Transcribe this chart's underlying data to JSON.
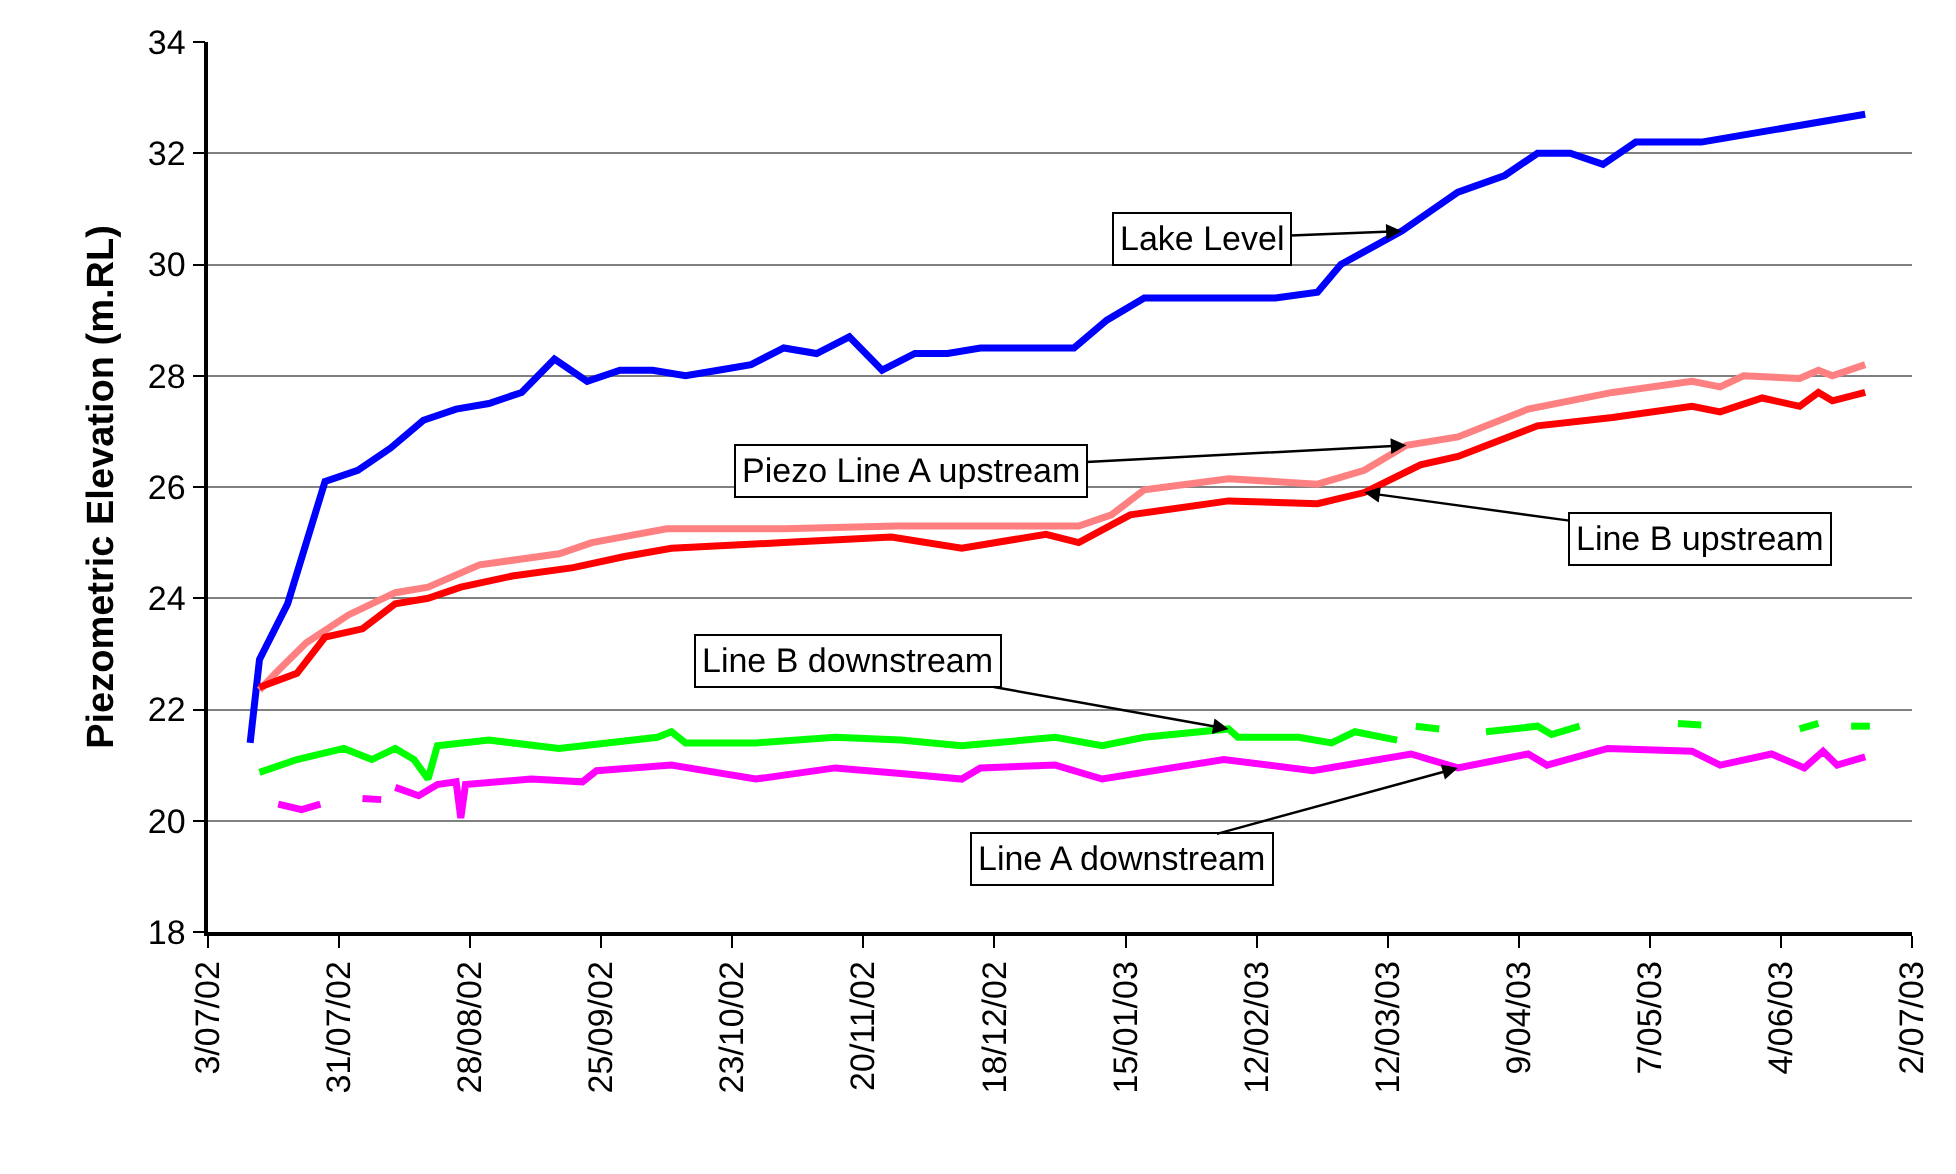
{
  "chart_data": {
    "type": "line",
    "ylabel": "Piezometric Elevation (m.RL)",
    "xlim": [
      "2002-07-03",
      "2003-07-02"
    ],
    "xticks": [
      {
        "value": "2002-07-03",
        "label": "3/07/02"
      },
      {
        "value": "2002-07-31",
        "label": "31/07/02"
      },
      {
        "value": "2002-08-28",
        "label": "28/08/02"
      },
      {
        "value": "2002-09-25",
        "label": "25/09/02"
      },
      {
        "value": "2002-10-23",
        "label": "23/10/02"
      },
      {
        "value": "2002-11-20",
        "label": "20/11/02"
      },
      {
        "value": "2002-12-18",
        "label": "18/12/02"
      },
      {
        "value": "2003-01-15",
        "label": "15/01/03"
      },
      {
        "value": "2003-02-12",
        "label": "12/02/03"
      },
      {
        "value": "2003-03-12",
        "label": "12/03/03"
      },
      {
        "value": "2003-04-09",
        "label": "9/04/03"
      },
      {
        "value": "2003-05-07",
        "label": "7/05/03"
      },
      {
        "value": "2003-06-04",
        "label": "4/06/03"
      },
      {
        "value": "2003-07-02",
        "label": "2/07/03"
      }
    ],
    "ylim": [
      18,
      34
    ],
    "yticks": [
      18,
      20,
      22,
      24,
      26,
      28,
      30,
      32,
      34
    ],
    "grid": "y",
    "legend": false,
    "marker": "none",
    "line_style": "solid",
    "series": [
      {
        "name": "Lake Level",
        "color": "#0000ff",
        "x": [
          "2002-07-12",
          "2002-07-14",
          "2002-07-20",
          "2002-07-28",
          "2002-08-04",
          "2002-08-11",
          "2002-08-18",
          "2002-08-25",
          "2002-09-01",
          "2002-09-08",
          "2002-09-15",
          "2002-09-22",
          "2002-09-29",
          "2002-10-06",
          "2002-10-13",
          "2002-10-20",
          "2002-10-27",
          "2002-11-03",
          "2002-11-10",
          "2002-11-17",
          "2002-11-24",
          "2002-12-01",
          "2002-12-08",
          "2002-12-15",
          "2003-01-04",
          "2003-01-11",
          "2003-01-19",
          "2003-02-16",
          "2003-02-25",
          "2003-03-02",
          "2003-03-15",
          "2003-03-27",
          "2003-04-06",
          "2003-04-13",
          "2003-04-20",
          "2003-04-27",
          "2003-05-04",
          "2003-05-18",
          "2003-06-22"
        ],
        "values": [
          21.4,
          22.9,
          23.9,
          26.1,
          26.3,
          26.7,
          27.2,
          27.4,
          27.5,
          27.7,
          28.3,
          27.9,
          28.1,
          28.1,
          28.0,
          28.1,
          28.2,
          28.5,
          28.4,
          28.7,
          28.1,
          28.4,
          28.4,
          28.5,
          28.5,
          29.0,
          29.4,
          29.4,
          29.5,
          30.0,
          30.6,
          31.3,
          31.6,
          32.0,
          32.0,
          31.8,
          32.2,
          32.2,
          32.7
        ]
      },
      {
        "name": "Piezo Line A upstream",
        "color": "#ff8080",
        "x": [
          "2002-07-14",
          "2002-07-18",
          "2002-07-24",
          "2002-08-02",
          "2002-08-12",
          "2002-08-19",
          "2002-08-30",
          "2002-09-16",
          "2002-09-23",
          "2002-10-09",
          "2002-11-03",
          "2002-11-27",
          "2002-12-29",
          "2003-01-05",
          "2003-01-12",
          "2003-01-19",
          "2003-02-06",
          "2003-02-25",
          "2003-03-07",
          "2003-03-16",
          "2003-03-27",
          "2003-04-11",
          "2003-04-29",
          "2003-05-16",
          "2003-05-22",
          "2003-05-27",
          "2003-06-08",
          "2003-06-12",
          "2003-06-15",
          "2003-06-22"
        ],
        "values": [
          22.35,
          22.7,
          23.2,
          23.7,
          24.1,
          24.2,
          24.6,
          24.8,
          25.0,
          25.25,
          25.25,
          25.3,
          25.3,
          25.3,
          25.5,
          25.95,
          26.15,
          26.05,
          26.3,
          26.75,
          26.9,
          27.4,
          27.7,
          27.9,
          27.8,
          28.0,
          27.95,
          28.1,
          28.0,
          28.2
        ]
      },
      {
        "name": "Line B upstream",
        "color": "#ff0000",
        "x": [
          "2002-07-14",
          "2002-07-22",
          "2002-07-28",
          "2002-08-05",
          "2002-08-12",
          "2002-08-19",
          "2002-08-26",
          "2002-09-06",
          "2002-09-19",
          "2002-09-30",
          "2002-10-10",
          "2002-11-03",
          "2002-11-26",
          "2002-12-11",
          "2002-12-29",
          "2003-01-05",
          "2003-01-16",
          "2003-02-06",
          "2003-02-25",
          "2003-03-07",
          "2003-03-19",
          "2003-03-27",
          "2003-04-13",
          "2003-04-29",
          "2003-05-16",
          "2003-05-22",
          "2003-05-31",
          "2003-06-08",
          "2003-06-12",
          "2003-06-15",
          "2003-06-22"
        ],
        "values": [
          22.4,
          22.65,
          23.3,
          23.45,
          23.9,
          24.0,
          24.2,
          24.4,
          24.55,
          24.75,
          24.9,
          25.0,
          25.1,
          24.9,
          25.15,
          25.0,
          25.5,
          25.75,
          25.7,
          25.9,
          26.4,
          26.55,
          27.1,
          27.25,
          27.45,
          27.35,
          27.6,
          27.45,
          27.7,
          27.55,
          27.7
        ]
      },
      {
        "name": "Line B downstream",
        "color": "#00ff00",
        "x": [
          "2002-07-14",
          "2002-07-22",
          "2002-08-01",
          "2002-08-07",
          "2002-08-12",
          "2002-08-16",
          "2002-08-19",
          "2002-08-21",
          "2002-09-01",
          "2002-09-16",
          "2002-10-07",
          "2002-10-10",
          "2002-10-13",
          "2002-10-28",
          "2002-11-14",
          "2002-11-28",
          "2002-12-11",
          "2002-12-31",
          "2003-01-10",
          "2003-01-19",
          "2003-02-06",
          "2003-02-08",
          "2003-02-21",
          "2003-02-28",
          "2003-03-05",
          "2003-03-14",
          "2003-03-17",
          "2003-03-18",
          "2003-03-23",
          "2003-03-28",
          "2003-04-02",
          "2003-04-13",
          "2003-04-16",
          "2003-04-22",
          "2003-05-01",
          "2003-05-13",
          "2003-05-18",
          "2003-06-01",
          "2003-06-08",
          "2003-06-12",
          "2003-06-16",
          "2003-06-19",
          "2003-06-23"
        ],
        "values": [
          20.87,
          21.1,
          21.3,
          21.1,
          21.3,
          21.1,
          20.75,
          21.35,
          21.45,
          21.3,
          21.5,
          21.6,
          21.4,
          21.4,
          21.5,
          21.45,
          21.35,
          21.5,
          21.35,
          21.5,
          21.65,
          21.5,
          21.5,
          21.4,
          21.6,
          21.45,
          null,
          21.7,
          21.65,
          null,
          21.6,
          21.7,
          21.55,
          21.7,
          null,
          21.75,
          21.72,
          null,
          21.65,
          21.75,
          null,
          21.7,
          21.7
        ]
      },
      {
        "name": "Line A downstream",
        "color": "#ff00ff",
        "x": [
          "2002-07-18",
          "2002-07-23",
          "2002-07-27",
          "2002-08-01",
          "2002-08-05",
          "2002-08-09",
          "2002-08-10",
          "2002-08-12",
          "2002-08-17",
          "2002-08-21",
          "2002-08-25",
          "2002-08-26",
          "2002-08-27",
          "2002-09-10",
          "2002-09-21",
          "2002-09-24",
          "2002-10-10",
          "2002-10-28",
          "2002-11-14",
          "2002-11-28",
          "2002-12-11",
          "2002-12-15",
          "2002-12-31",
          "2003-01-10",
          "2003-02-05",
          "2003-02-24",
          "2003-03-17",
          "2003-03-27",
          "2003-04-11",
          "2003-04-15",
          "2003-04-28",
          "2003-05-16",
          "2003-05-22",
          "2003-06-02",
          "2003-06-09",
          "2003-06-13",
          "2003-06-16",
          "2003-06-22"
        ],
        "values": [
          20.3,
          20.2,
          20.3,
          null,
          20.4,
          20.38,
          null,
          20.6,
          20.45,
          20.65,
          20.7,
          20.05,
          20.65,
          20.75,
          20.7,
          20.9,
          21.0,
          20.75,
          20.95,
          20.85,
          20.75,
          20.95,
          21.0,
          20.75,
          21.1,
          20.9,
          21.2,
          20.95,
          21.2,
          21.0,
          21.3,
          21.25,
          21.0,
          21.2,
          20.95,
          21.25,
          21.0,
          21.15
        ]
      }
    ]
  }
}
